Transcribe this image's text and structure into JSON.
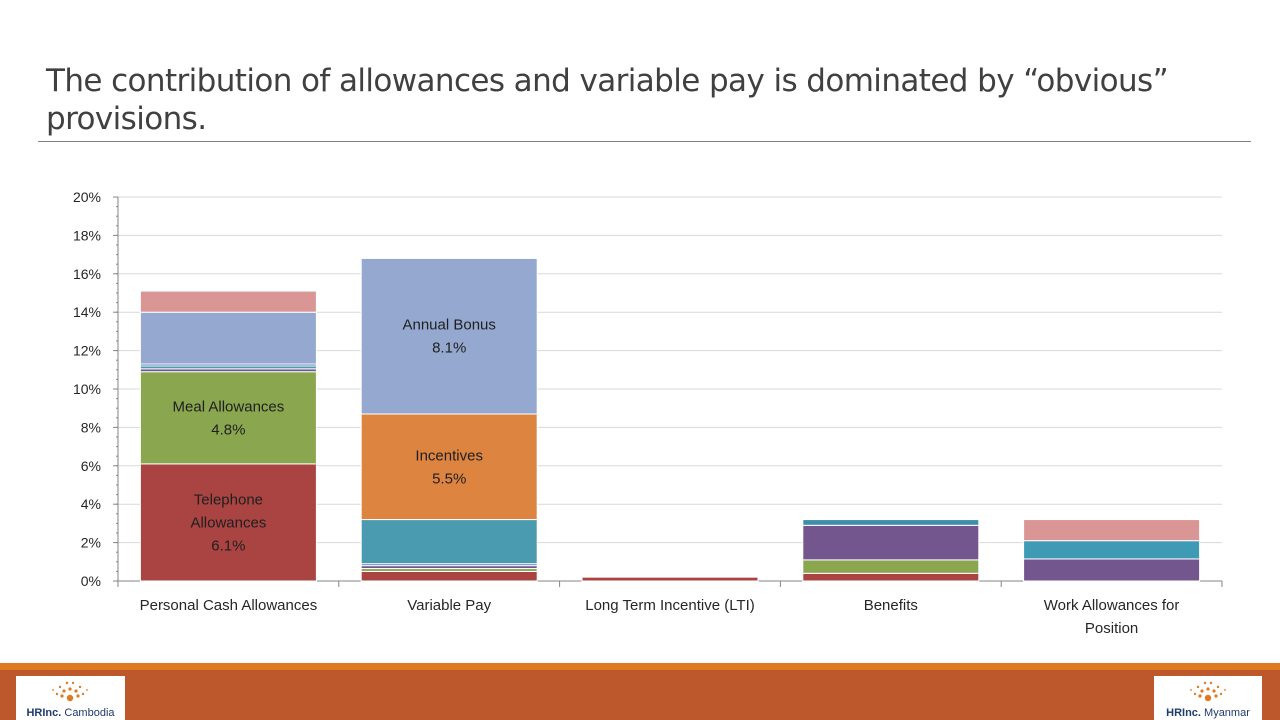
{
  "slide": {
    "title": "The contribution of allowances and variable pay is dominated by “obvious” provisions."
  },
  "logos": {
    "left": {
      "brand": "HRInc.",
      "country": "Cambodia"
    },
    "right": {
      "brand": "HRInc.",
      "country": "Myanmar"
    }
  },
  "colors": {
    "footer": "#bd582c",
    "footer_accent": "#e07a1f"
  },
  "chart_data": {
    "type": "bar",
    "stacked": true,
    "categories": [
      "Personal Cash Allowances",
      "Variable Pay",
      "Long Term Incentive (LTI)",
      "Benefits",
      "Work Allowances for Position"
    ],
    "ylim": [
      0,
      20
    ],
    "yticks": [
      0,
      2,
      4,
      6,
      8,
      10,
      12,
      14,
      16,
      18,
      20
    ],
    "ytick_format": "percent",
    "grid": true,
    "legend": "none",
    "segments": [
      [
        {
          "value": 6.1,
          "color": "#a94442",
          "label": "Telephone Allowances",
          "value_label": "6.1%"
        },
        {
          "value": 4.8,
          "color": "#8aa64f",
          "label": "Meal Allowances",
          "value_label": "4.8%"
        },
        {
          "value": 0.15,
          "color": "#6b5891",
          "label": "",
          "value_label": ""
        },
        {
          "value": 0.15,
          "color": "#4a9ab0",
          "label": "",
          "value_label": ""
        },
        {
          "value": 0.1,
          "color": "#4a6fa5",
          "label": "",
          "value_label": ""
        },
        {
          "value": 2.7,
          "color": "#95a9d0",
          "label": "",
          "value_label": ""
        },
        {
          "value": 1.1,
          "color": "#d99694",
          "label": "",
          "value_label": ""
        }
      ],
      [
        {
          "value": 0.5,
          "color": "#a94442",
          "label": "",
          "value_label": ""
        },
        {
          "value": 0.15,
          "color": "#8aa64f",
          "label": "",
          "value_label": ""
        },
        {
          "value": 0.15,
          "color": "#6b5891",
          "label": "",
          "value_label": ""
        },
        {
          "value": 0.1,
          "color": "#4a6fa5",
          "label": "",
          "value_label": ""
        },
        {
          "value": 2.3,
          "color": "#4a9ab0",
          "label": "",
          "value_label": ""
        },
        {
          "value": 5.5,
          "color": "#dd8440",
          "label": "Incentives",
          "value_label": "5.5%"
        },
        {
          "value": 8.1,
          "color": "#95a9d0",
          "label": "Annual Bonus",
          "value_label": "8.1%"
        }
      ],
      [
        {
          "value": 0.2,
          "color": "#a94442",
          "label": "",
          "value_label": ""
        }
      ],
      [
        {
          "value": 0.4,
          "color": "#a94442",
          "label": "",
          "value_label": ""
        },
        {
          "value": 0.7,
          "color": "#8aa64f",
          "label": "",
          "value_label": ""
        },
        {
          "value": 1.8,
          "color": "#74568f",
          "label": "",
          "value_label": ""
        },
        {
          "value": 0.3,
          "color": "#3f8fab",
          "label": "",
          "value_label": ""
        }
      ],
      [
        {
          "value": 1.15,
          "color": "#74568f",
          "label": "",
          "value_label": ""
        },
        {
          "value": 0.95,
          "color": "#3f9ab4",
          "label": "",
          "value_label": ""
        },
        {
          "value": 1.1,
          "color": "#d99694",
          "label": "",
          "value_label": ""
        }
      ]
    ]
  }
}
